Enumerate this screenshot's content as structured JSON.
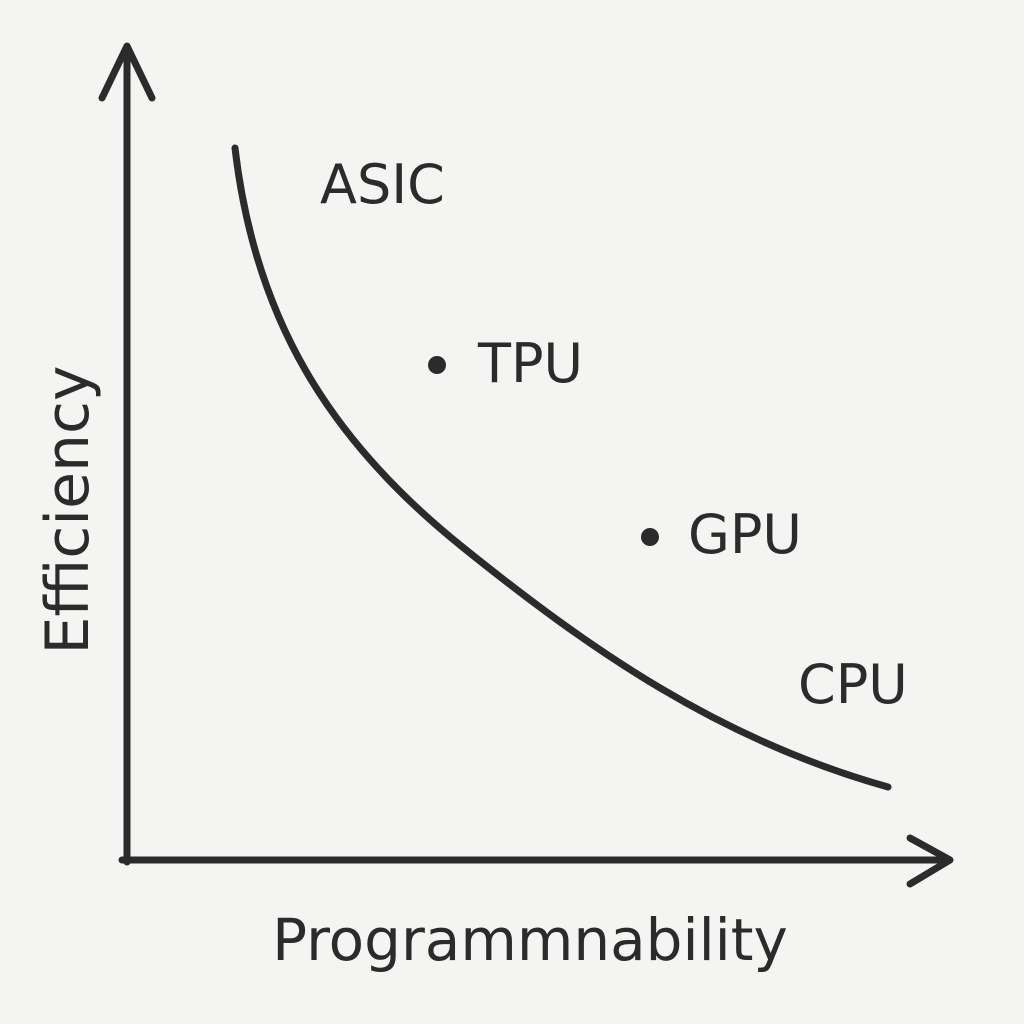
{
  "axes": {
    "x_label": "Programmnability",
    "y_label": "Efficiency"
  },
  "labels": [
    "ASIC",
    "TPU",
    "GPU",
    "CPU"
  ]
}
